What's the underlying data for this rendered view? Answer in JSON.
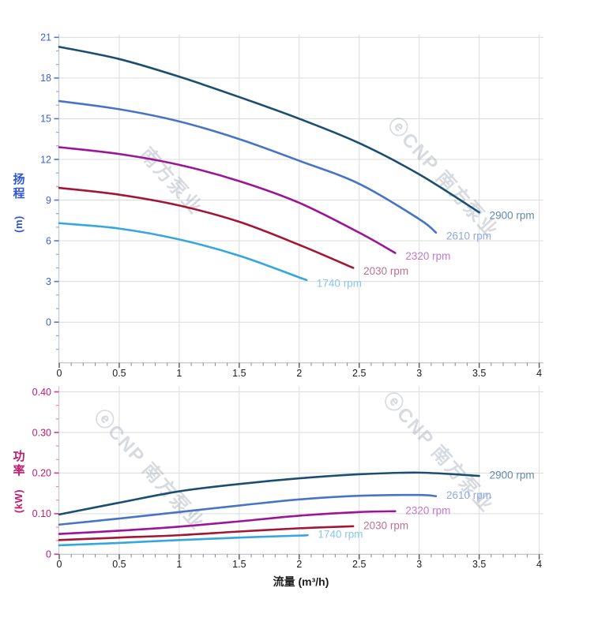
{
  "charts": {
    "head": {
      "y_title_chars": [
        "扬",
        "程"
      ],
      "y_unit": "(m)"
    },
    "power": {
      "y_title_chars": [
        "功",
        "率"
      ],
      "y_unit": "(kW)"
    },
    "x_title": "流量 (m³/h)"
  },
  "watermark": {
    "logo_char": "ⓔ",
    "text": "CNP 南方泵业",
    "text_partial": "南方泵业"
  },
  "colors": {
    "grid": "#dcdcdc",
    "axis_line": "#c6cad4",
    "x_tick_major": "#555555",
    "x_tick_minor": "#909090",
    "x_tick_label": "#1c1c1c",
    "x_title": "#1c1c1c",
    "head_tick_label": "#3e63d6",
    "head_tick_major": "#5a74cc",
    "head_tick_minor": "#90a4e8",
    "head_title": "#2f55d4",
    "power_tick_label": "#c11a6e",
    "power_tick_major": "#d13a95",
    "power_tick_minor": "#ef80c2",
    "power_title": "#c11a6e",
    "watermark": "#8e98a6"
  },
  "chart_data": [
    {
      "type": "line",
      "ylabel": "扬程 (m)",
      "xlabel": "流量 (m³/h)",
      "xlim": [
        0,
        4
      ],
      "ylim": [
        -3,
        21
      ],
      "grid": true,
      "legend_position": "at-line-end",
      "x_major_ticks": {
        "values": [
          0,
          0.5,
          1,
          1.5,
          2,
          2.5,
          3,
          3.5,
          4
        ],
        "labels": [
          "0",
          "0.5",
          "1",
          "1.5",
          "2",
          "2.5",
          "3",
          "3.5",
          "4"
        ]
      },
      "x_minor_divisions": 5,
      "y_major_ticks": {
        "values": [
          0,
          3,
          6,
          9,
          12,
          15,
          18,
          21
        ],
        "labels": [
          "0",
          "3",
          "6",
          "9",
          "12",
          "15",
          "18",
          "21"
        ]
      },
      "y_minor_divisions": 3,
      "series": [
        {
          "name": "2900 rpm",
          "color": "#1b4f72",
          "label_color": "#6389a9",
          "points": [
            [
              0,
              20.3
            ],
            [
              0.5,
              19.4
            ],
            [
              1,
              18.1
            ],
            [
              1.5,
              16.6
            ],
            [
              2,
              15.0
            ],
            [
              2.5,
              13.2
            ],
            [
              3,
              10.9
            ],
            [
              3.5,
              8.1
            ]
          ]
        },
        {
          "name": "2610 rpm",
          "color": "#4874c8",
          "label_color": "#8fa9df",
          "points": [
            [
              0,
              16.3
            ],
            [
              0.5,
              15.7
            ],
            [
              1,
              14.8
            ],
            [
              1.5,
              13.5
            ],
            [
              2,
              11.9
            ],
            [
              2.5,
              10.2
            ],
            [
              3,
              7.6
            ],
            [
              3.14,
              6.6
            ]
          ]
        },
        {
          "name": "2320 rpm",
          "color": "#9c1498",
          "label_color": "#c478ca",
          "points": [
            [
              0,
              12.9
            ],
            [
              0.5,
              12.4
            ],
            [
              1,
              11.6
            ],
            [
              1.5,
              10.4
            ],
            [
              2,
              8.8
            ],
            [
              2.5,
              6.6
            ],
            [
              2.8,
              5.1
            ]
          ]
        },
        {
          "name": "2030 rpm",
          "color": "#a31635",
          "label_color": "#be7289",
          "points": [
            [
              0,
              9.9
            ],
            [
              0.5,
              9.4
            ],
            [
              1,
              8.6
            ],
            [
              1.5,
              7.4
            ],
            [
              2,
              5.7
            ],
            [
              2.45,
              4.0
            ]
          ]
        },
        {
          "name": "1740 rpm",
          "color": "#34a7e0",
          "label_color": "#88c8ec",
          "points": [
            [
              0,
              7.3
            ],
            [
              0.5,
              6.9
            ],
            [
              1,
              6.1
            ],
            [
              1.5,
              4.9
            ],
            [
              2,
              3.3
            ],
            [
              2.06,
              3.1
            ]
          ]
        }
      ]
    },
    {
      "type": "line",
      "ylabel": "功率 (kW)",
      "xlabel": "流量 (m³/h)",
      "xlim": [
        0,
        4
      ],
      "ylim": [
        0,
        0.4
      ],
      "grid": true,
      "legend_position": "at-line-end",
      "x_major_ticks": {
        "values": [
          0,
          0.5,
          1,
          1.5,
          2,
          2.5,
          3,
          3.5,
          4
        ],
        "labels": [
          "0",
          "0.5",
          "1",
          "1.5",
          "2",
          "2.5",
          "3",
          "3.5",
          "4"
        ]
      },
      "x_minor_divisions": 5,
      "y_major_ticks": {
        "values": [
          0,
          0.1,
          0.2,
          0.3,
          0.4
        ],
        "labels": [
          "0",
          "0.10",
          "0.20",
          "0.30",
          "0.40"
        ]
      },
      "y_minor_divisions": 3,
      "series": [
        {
          "name": "2900 rpm",
          "color": "#1b4f72",
          "label_color": "#6389a9",
          "points": [
            [
              0,
              0.098
            ],
            [
              0.5,
              0.127
            ],
            [
              1,
              0.155
            ],
            [
              1.5,
              0.173
            ],
            [
              2,
              0.187
            ],
            [
              2.5,
              0.197
            ],
            [
              3,
              0.201
            ],
            [
              3.5,
              0.193
            ]
          ]
        },
        {
          "name": "2610 rpm",
          "color": "#4874c8",
          "label_color": "#8fa9df",
          "points": [
            [
              0,
              0.073
            ],
            [
              0.5,
              0.088
            ],
            [
              1,
              0.104
            ],
            [
              1.5,
              0.12
            ],
            [
              2,
              0.135
            ],
            [
              2.5,
              0.144
            ],
            [
              3,
              0.146
            ],
            [
              3.14,
              0.143
            ]
          ]
        },
        {
          "name": "2320 rpm",
          "color": "#9c1498",
          "label_color": "#c478ca",
          "points": [
            [
              0,
              0.05
            ],
            [
              0.5,
              0.058
            ],
            [
              1,
              0.068
            ],
            [
              1.5,
              0.081
            ],
            [
              2,
              0.095
            ],
            [
              2.5,
              0.104
            ],
            [
              2.8,
              0.106
            ]
          ]
        },
        {
          "name": "2030 rpm",
          "color": "#a31635",
          "label_color": "#be7289",
          "points": [
            [
              0,
              0.035
            ],
            [
              0.5,
              0.041
            ],
            [
              1,
              0.047
            ],
            [
              1.5,
              0.056
            ],
            [
              2,
              0.064
            ],
            [
              2.45,
              0.069
            ]
          ]
        },
        {
          "name": "1740 rpm",
          "color": "#34a7e0",
          "label_color": "#88c8ec",
          "points": [
            [
              0,
              0.022
            ],
            [
              0.5,
              0.028
            ],
            [
              1,
              0.035
            ],
            [
              1.5,
              0.041
            ],
            [
              2,
              0.046
            ],
            [
              2.07,
              0.047
            ]
          ]
        }
      ]
    }
  ]
}
